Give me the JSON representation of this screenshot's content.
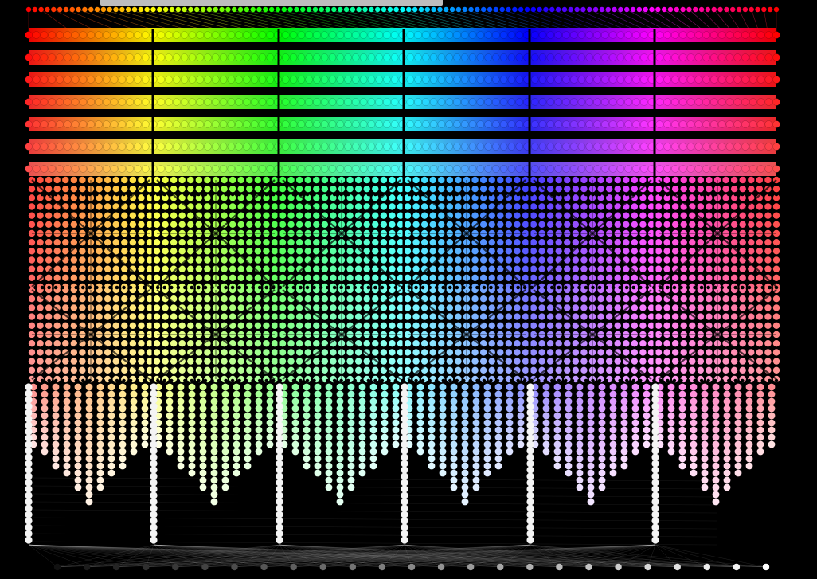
{
  "visualization": {
    "kind": "color-lattice",
    "background": "#000000",
    "hue_stops": [
      "#ff0000",
      "#ffff00",
      "#00ff00",
      "#00ffff",
      "#0000ff",
      "#ff00ff",
      "#ff0000"
    ],
    "top_band_count": 7,
    "bottom_band_count": 10,
    "columns": 6,
    "grayscale_row": {
      "count": 25,
      "from": "#111111",
      "to": "#ffffff"
    }
  },
  "scrollbar": {
    "color": "#bdbdbd",
    "position_fraction": 0.12
  }
}
